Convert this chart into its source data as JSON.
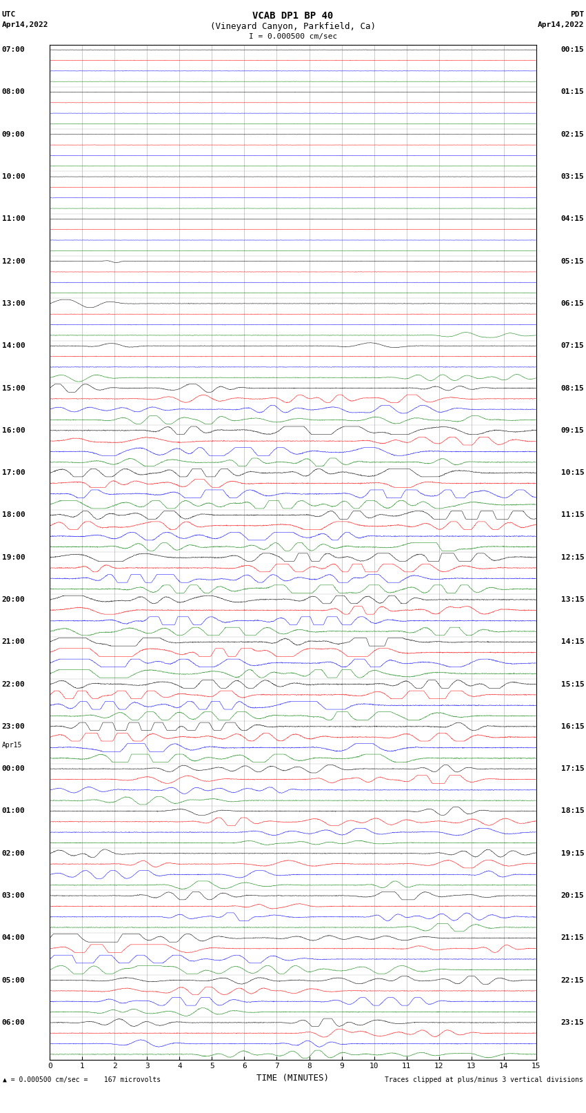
{
  "title_line1": "VCAB DP1 BP 40",
  "title_line2": "(Vineyard Canyon, Parkfield, Ca)",
  "scale_label": "I = 0.000500 cm/sec",
  "utc_label": "UTC",
  "utc_date": "Apr14,2022",
  "pdt_label": "PDT",
  "pdt_date": "Apr14,2022",
  "xlabel": "TIME (MINUTES)",
  "bottom_left": "= 0.000500 cm/sec =    167 microvolts",
  "bottom_right": "Traces clipped at plus/minus 3 vertical divisions",
  "x_min": 0,
  "x_max": 15,
  "x_ticks": [
    0,
    1,
    2,
    3,
    4,
    5,
    6,
    7,
    8,
    9,
    10,
    11,
    12,
    13,
    14,
    15
  ],
  "background_color": "#ffffff",
  "grid_color": "#999999",
  "trace_colors": [
    "black",
    "red",
    "blue",
    "green"
  ],
  "n_hour_rows": 24,
  "traces_per_hour": 4,
  "figsize": [
    8.5,
    16.13
  ],
  "dpi": 100,
  "left_labels": [
    "07:00",
    "08:00",
    "09:00",
    "10:00",
    "11:00",
    "12:00",
    "13:00",
    "14:00",
    "15:00",
    "16:00",
    "17:00",
    "18:00",
    "19:00",
    "20:00",
    "21:00",
    "22:00",
    "23:00",
    "00:00",
    "01:00",
    "02:00",
    "03:00",
    "04:00",
    "05:00",
    "06:00"
  ],
  "right_labels": [
    "00:15",
    "01:15",
    "02:15",
    "03:15",
    "04:15",
    "05:15",
    "06:15",
    "07:15",
    "08:15",
    "09:15",
    "10:15",
    "11:15",
    "12:15",
    "13:15",
    "14:15",
    "15:15",
    "16:15",
    "17:15",
    "18:15",
    "19:15",
    "20:15",
    "21:15",
    "22:15",
    "23:15"
  ],
  "apr15_row": 17,
  "noise_seed": 12345
}
